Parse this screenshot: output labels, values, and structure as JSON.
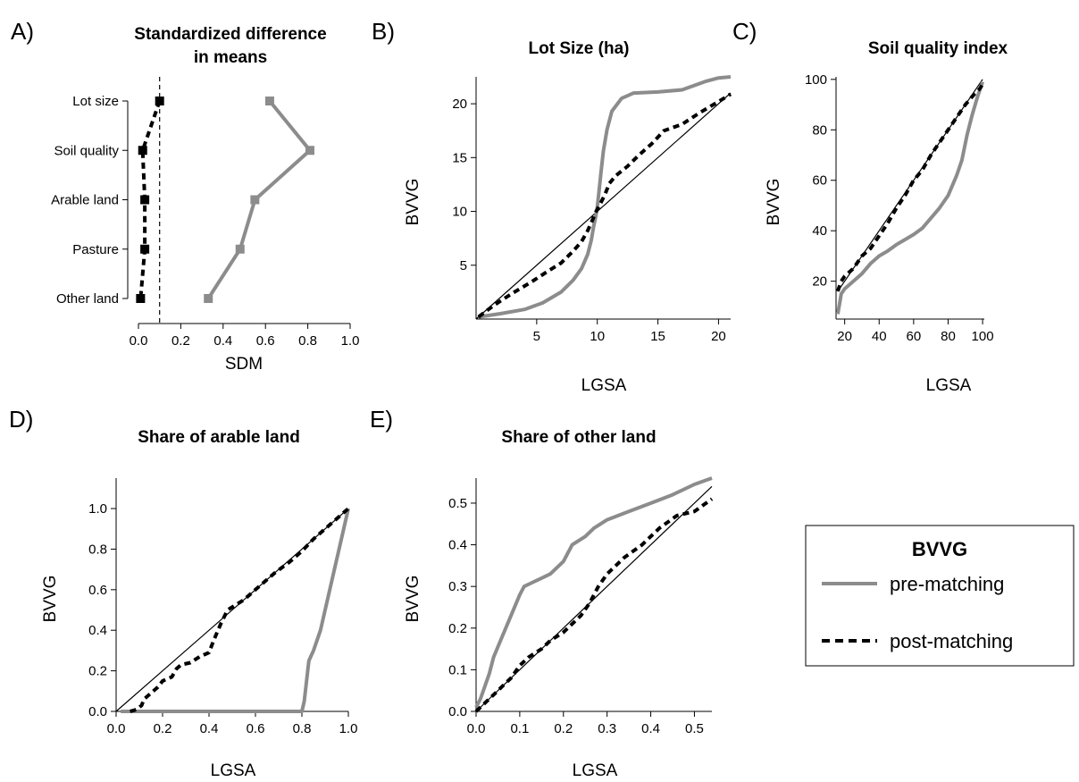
{
  "colors": {
    "pre": "#8c8c8c",
    "post": "#000000",
    "ink": "#000000"
  },
  "legend": {
    "title": "BVVG",
    "entries": [
      {
        "label": "pre-matching",
        "style": "solid-gray"
      },
      {
        "label": "post-matching",
        "style": "dashed-black"
      }
    ]
  },
  "chart_data": [
    {
      "id": "A",
      "letter": "A)",
      "type": "scatter",
      "title": [
        "Standardized difference",
        "in means"
      ],
      "xlabel": "SDM",
      "ylabel": "",
      "xlim": [
        0,
        1
      ],
      "xticks": [
        0,
        0.2,
        0.4,
        0.6,
        0.8,
        1
      ],
      "xtick_labels": [
        "0.0",
        "0.2",
        "0.4",
        "0.6",
        "0.8",
        "1.0"
      ],
      "categories": [
        "Lot size",
        "Soil quality",
        "Arable land",
        "Pasture",
        "Other land"
      ],
      "reference_x": 0.1,
      "series": [
        {
          "key": "pre",
          "values": [
            0.62,
            0.81,
            0.55,
            0.48,
            0.33
          ]
        },
        {
          "key": "post",
          "values": [
            0.1,
            0.02,
            0.03,
            0.03,
            0.01
          ]
        }
      ]
    },
    {
      "id": "B",
      "letter": "B)",
      "type": "line",
      "title": [
        "Lot Size (ha)"
      ],
      "xlabel": "LGSA",
      "ylabel": "BVVG",
      "xlim": [
        0,
        21
      ],
      "ylim": [
        0,
        22.5
      ],
      "xticks": [
        5,
        10,
        15,
        20
      ],
      "xtick_labels": [
        "5",
        "10",
        "15",
        "20"
      ],
      "yticks": [
        5,
        10,
        15,
        20
      ],
      "ytick_labels": [
        "5",
        "10",
        "15",
        "20"
      ],
      "diagonal": [
        [
          0,
          0
        ],
        [
          21,
          21
        ]
      ],
      "series": [
        {
          "key": "pre",
          "x": [
            0.2,
            2,
            4,
            5.5,
            7,
            8,
            8.7,
            9.2,
            9.5,
            9.7,
            9.85,
            10,
            10.15,
            10.3,
            10.5,
            10.8,
            11.2,
            12,
            13,
            15,
            17,
            18,
            19,
            20,
            21
          ],
          "y": [
            0.2,
            0.5,
            0.9,
            1.5,
            2.5,
            3.6,
            4.7,
            6,
            7.3,
            8.6,
            9.4,
            10.4,
            12,
            13.6,
            15.6,
            17.6,
            19.3,
            20.5,
            21,
            21.1,
            21.3,
            21.7,
            22.1,
            22.4,
            22.5
          ]
        },
        {
          "key": "post",
          "x": [
            0.2,
            1.5,
            3,
            4.5,
            6,
            7,
            8,
            8.7,
            9.2,
            9.6,
            9.9,
            10.2,
            10.6,
            11,
            11.5,
            12.5,
            13.5,
            14.5,
            15.5,
            17,
            18.5,
            20,
            21
          ],
          "y": [
            0.2,
            1.3,
            2.4,
            3.4,
            4.5,
            5.2,
            6.3,
            7.2,
            8.2,
            9.2,
            10,
            10.6,
            11.5,
            12.6,
            13.3,
            14.2,
            15.3,
            16.3,
            17.5,
            18.1,
            19.2,
            20.2,
            20.9
          ]
        }
      ]
    },
    {
      "id": "C",
      "letter": "C)",
      "type": "line",
      "title": [
        "Soil quality index"
      ],
      "xlabel": "LGSA",
      "ylabel": "BVVG",
      "xlim": [
        15,
        101
      ],
      "ylim": [
        5,
        101
      ],
      "xticks": [
        20,
        40,
        60,
        80,
        100
      ],
      "xtick_labels": [
        "20",
        "40",
        "60",
        "80",
        "100"
      ],
      "yticks": [
        20,
        40,
        60,
        80,
        100
      ],
      "ytick_labels": [
        "20",
        "40",
        "60",
        "80",
        "100"
      ],
      "diagonal": [
        [
          16,
          16
        ],
        [
          100,
          100
        ]
      ],
      "series": [
        {
          "key": "pre",
          "x": [
            16,
            17,
            18,
            20,
            25,
            30,
            35,
            40,
            45,
            50,
            55,
            60,
            65,
            70,
            75,
            80,
            85,
            88,
            91,
            94,
            97,
            99,
            100
          ],
          "y": [
            7,
            11,
            15,
            17,
            20,
            23,
            27,
            30,
            32,
            34.5,
            36.5,
            38.5,
            41,
            45,
            49,
            54,
            62,
            68,
            78,
            86,
            93,
            97,
            99
          ]
        },
        {
          "key": "post",
          "x": [
            16,
            18,
            20,
            25,
            30,
            35,
            40,
            45,
            50,
            55,
            60,
            65,
            70,
            75,
            80,
            85,
            90,
            95,
            98,
            100
          ],
          "y": [
            16,
            20,
            22,
            25,
            30,
            33,
            38,
            43,
            49,
            54,
            60,
            64,
            70,
            75,
            80,
            85,
            90,
            94,
            96,
            98
          ]
        }
      ]
    },
    {
      "id": "D",
      "letter": "D)",
      "type": "line",
      "title": [
        "Share of arable land"
      ],
      "xlabel": "LGSA",
      "ylabel": "BVVG",
      "xlim": [
        0,
        1
      ],
      "ylim": [
        0,
        1.15
      ],
      "xticks": [
        0,
        0.2,
        0.4,
        0.6,
        0.8,
        1
      ],
      "xtick_labels": [
        "0.0",
        "0.2",
        "0.4",
        "0.6",
        "0.8",
        "1.0"
      ],
      "yticks": [
        0,
        0.2,
        0.4,
        0.6,
        0.8,
        1
      ],
      "ytick_labels": [
        "0.0",
        "0.2",
        "0.4",
        "0.6",
        "0.8",
        "1.0"
      ],
      "diagonal": [
        [
          0,
          0
        ],
        [
          1,
          1
        ]
      ],
      "series": [
        {
          "key": "pre",
          "x": [
            0.02,
            0.4,
            0.8,
            0.81,
            0.82,
            0.83,
            0.85,
            0.88,
            0.92,
            0.96,
            1
          ],
          "y": [
            0,
            0,
            0,
            0.05,
            0.15,
            0.25,
            0.3,
            0.4,
            0.6,
            0.8,
            1
          ]
        },
        {
          "key": "post",
          "x": [
            0.06,
            0.09,
            0.11,
            0.12,
            0.15,
            0.18,
            0.2,
            0.24,
            0.26,
            0.28,
            0.32,
            0.36,
            0.4,
            0.42,
            0.45,
            0.48,
            0.55,
            0.6,
            0.68,
            0.75,
            0.8,
            0.85,
            0.9,
            0.95,
            1
          ],
          "y": [
            0,
            0.01,
            0.03,
            0.06,
            0.09,
            0.12,
            0.15,
            0.17,
            0.21,
            0.23,
            0.24,
            0.27,
            0.29,
            0.35,
            0.43,
            0.5,
            0.55,
            0.6,
            0.68,
            0.74,
            0.79,
            0.85,
            0.9,
            0.95,
            1
          ]
        }
      ]
    },
    {
      "id": "E",
      "letter": "E)",
      "type": "line",
      "title": [
        "Share of other land"
      ],
      "xlabel": "LGSA",
      "ylabel": "BVVG",
      "xlim": [
        0,
        0.54
      ],
      "ylim": [
        0,
        0.56
      ],
      "xticks": [
        0,
        0.1,
        0.2,
        0.3,
        0.4,
        0.5
      ],
      "xtick_labels": [
        "0.0",
        "0.1",
        "0.2",
        "0.3",
        "0.4",
        "0.5"
      ],
      "yticks": [
        0,
        0.1,
        0.2,
        0.3,
        0.4,
        0.5
      ],
      "ytick_labels": [
        "0.0",
        "0.1",
        "0.2",
        "0.3",
        "0.4",
        "0.5"
      ],
      "diagonal": [
        [
          0,
          0
        ],
        [
          0.54,
          0.54
        ]
      ],
      "series": [
        {
          "key": "pre",
          "x": [
            0,
            0.01,
            0.02,
            0.03,
            0.04,
            0.06,
            0.08,
            0.1,
            0.11,
            0.13,
            0.15,
            0.17,
            0.2,
            0.22,
            0.25,
            0.27,
            0.3,
            0.35,
            0.4,
            0.45,
            0.5,
            0.54
          ],
          "y": [
            0.01,
            0.03,
            0.06,
            0.09,
            0.13,
            0.18,
            0.23,
            0.28,
            0.3,
            0.31,
            0.32,
            0.33,
            0.36,
            0.4,
            0.42,
            0.44,
            0.46,
            0.48,
            0.5,
            0.52,
            0.545,
            0.56
          ]
        },
        {
          "key": "post",
          "x": [
            0,
            0.02,
            0.04,
            0.06,
            0.08,
            0.1,
            0.12,
            0.15,
            0.17,
            0.2,
            0.22,
            0.24,
            0.26,
            0.28,
            0.3,
            0.32,
            0.34,
            0.38,
            0.42,
            0.46,
            0.5,
            0.54
          ],
          "y": [
            0,
            0.02,
            0.04,
            0.06,
            0.08,
            0.11,
            0.13,
            0.15,
            0.17,
            0.19,
            0.21,
            0.23,
            0.26,
            0.3,
            0.33,
            0.35,
            0.37,
            0.4,
            0.44,
            0.47,
            0.48,
            0.51
          ]
        }
      ]
    }
  ]
}
